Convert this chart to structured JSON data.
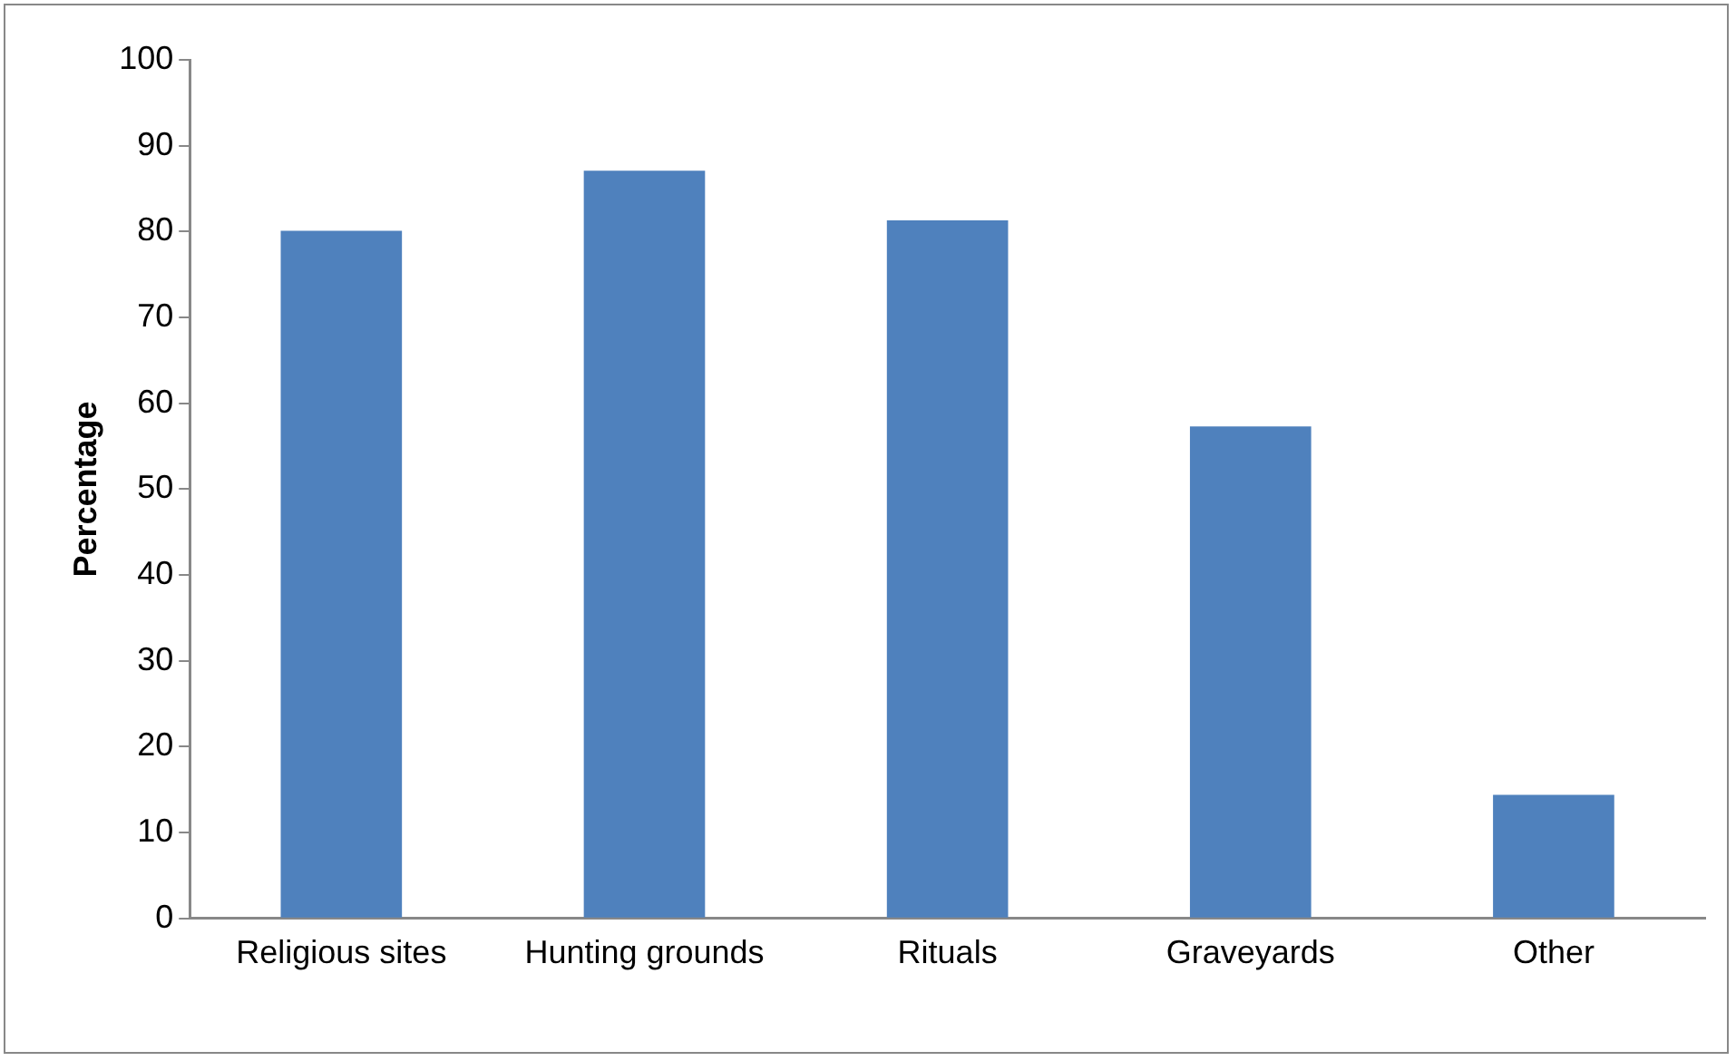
{
  "chart_data": {
    "type": "bar",
    "ylabel": "Percentage",
    "categories": [
      "Religious sites",
      "Hunting grounds",
      "Rituals",
      "Graveyards",
      "Other"
    ],
    "values": [
      80.1,
      87.1,
      81.3,
      57.3,
      14.4
    ],
    "color": "#4f81bd",
    "ylim": [
      0,
      100
    ],
    "yticks": [
      0,
      10,
      20,
      30,
      40,
      50,
      60,
      70,
      80,
      90,
      100
    ],
    "grid": false,
    "legend": false
  }
}
